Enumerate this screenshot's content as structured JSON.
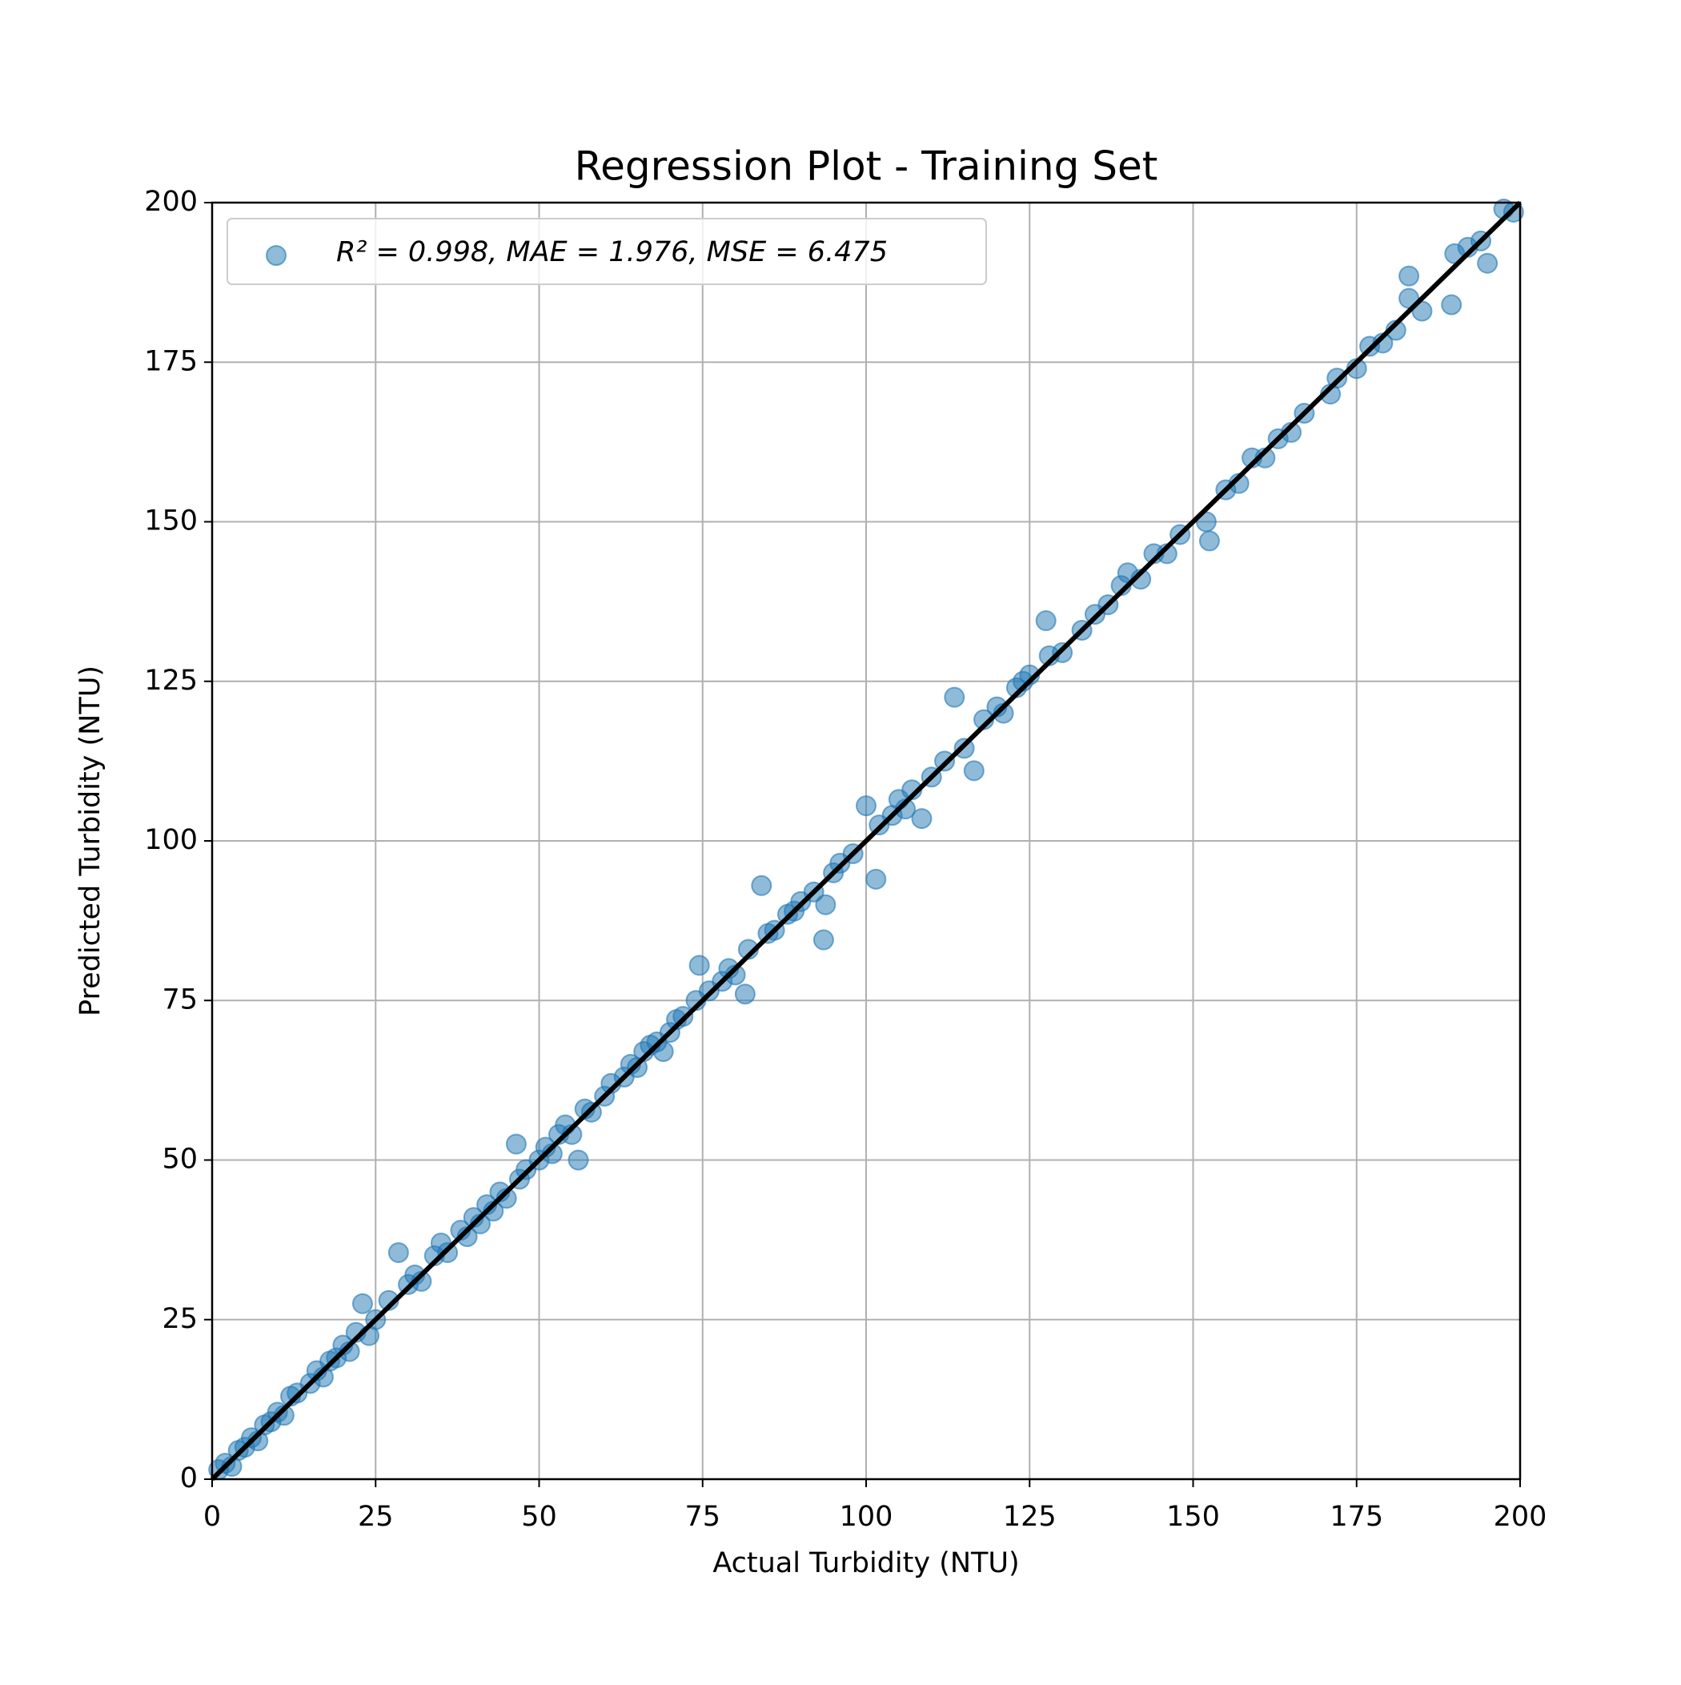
{
  "chart_data": {
    "type": "scatter",
    "title": "Regression Plot - Training Set",
    "xlabel": "Actual Turbidity (NTU)",
    "ylabel": "Predicted Turbidity (NTU)",
    "xlim": [
      0,
      200
    ],
    "ylim": [
      0,
      200
    ],
    "xticks": [
      0,
      25,
      50,
      75,
      100,
      125,
      150,
      175,
      200
    ],
    "yticks": [
      0,
      25,
      50,
      75,
      100,
      125,
      150,
      175,
      200
    ],
    "grid": true,
    "legend": "upper left",
    "series": [
      {
        "name": "R² = 0.998, MAE = 1.976, MSE = 6.475",
        "color": "#1f77b4",
        "x": [
          1,
          2,
          3,
          4,
          5,
          6,
          7,
          8,
          9,
          10,
          11,
          12,
          13,
          15,
          16,
          17,
          18,
          19,
          20,
          21,
          22,
          23,
          24,
          25,
          27,
          28.5,
          30,
          31,
          32,
          34,
          35,
          36,
          38,
          39,
          40,
          41,
          42,
          43,
          44,
          45,
          46.5,
          47,
          48,
          50,
          51,
          52,
          53,
          54,
          55,
          56,
          57,
          58,
          60,
          61,
          63,
          64,
          65,
          66,
          67,
          68,
          69,
          70,
          71,
          72,
          74,
          74.5,
          76,
          78,
          79,
          80,
          81.5,
          82,
          84,
          85,
          86,
          88,
          89,
          90,
          92,
          93.5,
          93.8,
          95,
          96,
          98,
          100,
          101.5,
          102,
          104,
          105,
          106,
          107,
          108.5,
          110,
          112,
          113.5,
          115,
          116.5,
          118,
          120,
          121,
          123,
          124,
          125,
          127.5,
          128,
          130,
          133,
          135,
          137,
          139,
          140,
          142,
          144,
          146,
          148,
          152,
          152.5,
          155,
          157,
          159,
          161,
          163,
          165,
          167,
          171,
          172,
          175,
          177,
          179,
          181,
          183,
          183,
          185,
          189.5,
          190,
          192,
          194,
          195,
          197.5,
          199
        ],
        "values": [
          1.5,
          2.5,
          2,
          4.5,
          5,
          6.5,
          6,
          8.5,
          9,
          10.5,
          10,
          13,
          13.5,
          15,
          17,
          16,
          18.5,
          19,
          21,
          20,
          23,
          27.5,
          22.5,
          25,
          28,
          35.5,
          30.5,
          32,
          31,
          35,
          37,
          35.5,
          39,
          38,
          41,
          40,
          43,
          42,
          45,
          44,
          52.5,
          47,
          48.5,
          50,
          52,
          51,
          54,
          55.5,
          54,
          50,
          58,
          57.5,
          60,
          62,
          63,
          65,
          64.5,
          67,
          68,
          68.5,
          67,
          70,
          72,
          72.5,
          75,
          80.5,
          76.5,
          78,
          80,
          79,
          76,
          83,
          93,
          85.5,
          86,
          88.5,
          89,
          90.5,
          92,
          84.5,
          90,
          95,
          96.5,
          98,
          105.5,
          94,
          102.5,
          104,
          106.5,
          105,
          108,
          103.5,
          110,
          112.5,
          122.5,
          114.5,
          111,
          119,
          121,
          120,
          124,
          125,
          126,
          134.5,
          129,
          129.5,
          133,
          135.5,
          137,
          140,
          142,
          141,
          145,
          145,
          148,
          150,
          147,
          155,
          156,
          160,
          160,
          163,
          164,
          167,
          170,
          172.5,
          174,
          177.5,
          178,
          180,
          185,
          188.5,
          183,
          184,
          192,
          193,
          194,
          190.5,
          199,
          198.5
        ]
      }
    ],
    "reference_line": {
      "x": [
        0,
        200
      ],
      "y": [
        0,
        200
      ],
      "color": "#000000"
    }
  }
}
